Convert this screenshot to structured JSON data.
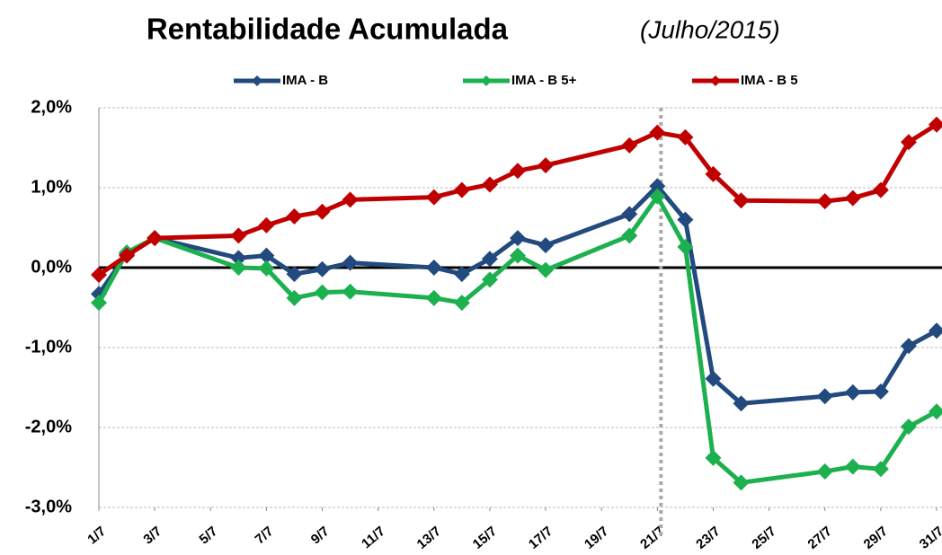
{
  "chart_data": {
    "type": "line",
    "title": "Rentabilidade Acumulada",
    "subtitle": "(Julho/2015)",
    "x": [
      1,
      2,
      3,
      6,
      7,
      8,
      9,
      10,
      13,
      14,
      15,
      16,
      17,
      20,
      21,
      22,
      23,
      24,
      27,
      28,
      29,
      30,
      31
    ],
    "series": [
      {
        "name": "IMA - B",
        "color": "#234a7e",
        "values": [
          -0.33,
          0.17,
          0.37,
          0.12,
          0.15,
          -0.08,
          -0.02,
          0.06,
          0.0,
          -0.08,
          0.11,
          0.37,
          0.28,
          0.67,
          1.02,
          0.6,
          -1.39,
          -1.7,
          -1.61,
          -1.56,
          -1.55,
          -0.98,
          -0.79
        ]
      },
      {
        "name": "IMA - B 5+",
        "color": "#1db04f",
        "values": [
          -0.44,
          0.19,
          0.37,
          0.0,
          -0.01,
          -0.38,
          -0.31,
          -0.3,
          -0.38,
          -0.44,
          -0.15,
          0.15,
          -0.03,
          0.4,
          0.89,
          0.26,
          -2.38,
          -2.69,
          -2.55,
          -2.49,
          -2.52,
          -1.99,
          -1.8
        ]
      },
      {
        "name": "IMA - B 5",
        "color": "#c00000",
        "values": [
          -0.09,
          0.15,
          0.37,
          0.4,
          0.53,
          0.64,
          0.7,
          0.85,
          0.88,
          0.97,
          1.04,
          1.21,
          1.28,
          1.53,
          1.69,
          1.63,
          1.17,
          0.84,
          0.83,
          0.87,
          0.97,
          1.57,
          1.79
        ]
      }
    ],
    "xlim": [
      1,
      31
    ],
    "xticks": [
      {
        "value": 1,
        "label": "1/7"
      },
      {
        "value": 3,
        "label": "3/7"
      },
      {
        "value": 5,
        "label": "5/7"
      },
      {
        "value": 7,
        "label": "7/7"
      },
      {
        "value": 9,
        "label": "9/7"
      },
      {
        "value": 11,
        "label": "11/7"
      },
      {
        "value": 13,
        "label": "13/7"
      },
      {
        "value": 15,
        "label": "15/7"
      },
      {
        "value": 17,
        "label": "17/7"
      },
      {
        "value": 19,
        "label": "19/7"
      },
      {
        "value": 21,
        "label": "21/7"
      },
      {
        "value": 23,
        "label": "23/7"
      },
      {
        "value": 25,
        "label": "25/7"
      },
      {
        "value": 27,
        "label": "27/7"
      },
      {
        "value": 29,
        "label": "29/7"
      },
      {
        "value": 31,
        "label": "31/7"
      }
    ],
    "ylim": [
      -3,
      2
    ],
    "yticks": [
      {
        "value": -3,
        "label": "-3,0%"
      },
      {
        "value": -2,
        "label": "-2,0%"
      },
      {
        "value": -1,
        "label": "-1,0%"
      },
      {
        "value": 0,
        "label": "0,0%"
      },
      {
        "value": 1,
        "label": "1,0%"
      },
      {
        "value": 2,
        "label": "2,0%"
      }
    ],
    "grid": true,
    "reference_x": 21,
    "legend": "top"
  }
}
